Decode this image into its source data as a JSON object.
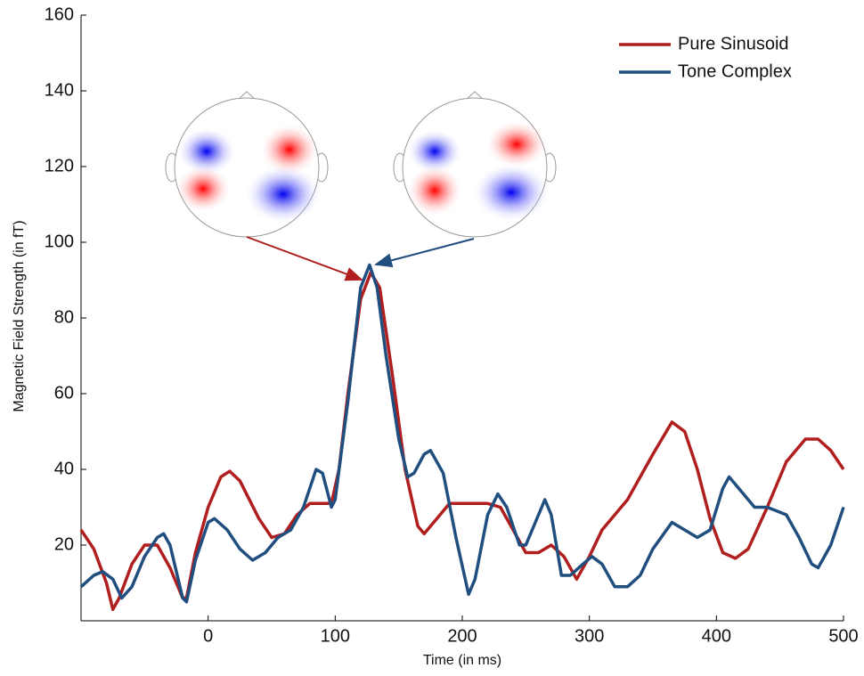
{
  "chart_data": {
    "type": "line",
    "x_label": "Time (in ms)",
    "y_label": "Magnetic Field Strength (in fT)",
    "xlim": [
      -100,
      500
    ],
    "xticks": [
      0,
      100,
      200,
      300,
      400,
      500
    ],
    "ylim": [
      0,
      160
    ],
    "yticks": [
      20,
      40,
      60,
      80,
      100,
      120,
      140,
      160
    ],
    "legend": "upper right",
    "series": [
      {
        "name": "Pure Sinusoid",
        "color": "#b01e1e",
        "x": [
          -100,
          -90,
          -80,
          -75,
          -70,
          -60,
          -50,
          -40,
          -30,
          -20,
          -17,
          -10,
          0,
          10,
          17,
          25,
          40,
          50,
          60,
          70,
          80,
          90,
          97,
          103,
          110,
          120,
          128,
          135,
          145,
          155,
          165,
          170,
          180,
          190,
          200,
          210,
          220,
          230,
          240,
          250,
          260,
          270,
          280,
          290,
          300,
          310,
          330,
          350,
          365,
          375,
          385,
          395,
          405,
          415,
          425,
          440,
          455,
          470,
          480,
          490,
          500
        ],
        "values": [
          24,
          19,
          10,
          3,
          6,
          15,
          20,
          20,
          14,
          6,
          6,
          18,
          30,
          38,
          39.5,
          37,
          27,
          22,
          23,
          28,
          31,
          31,
          31,
          40,
          60,
          85,
          92,
          88,
          65,
          40,
          25,
          23,
          27,
          31,
          31,
          31,
          31,
          30,
          24,
          18,
          18,
          20,
          17,
          11,
          17,
          24,
          32,
          44,
          52.5,
          50,
          40,
          27,
          18,
          16.5,
          19,
          30,
          42,
          48,
          48,
          45,
          40
        ]
      },
      {
        "name": "Tone Complex",
        "color": "#1f4e7f",
        "x": [
          -100,
          -90,
          -83,
          -75,
          -68,
          -60,
          -50,
          -40,
          -35,
          -30,
          -20,
          -17,
          -10,
          0,
          5,
          15,
          25,
          35,
          45,
          55,
          65,
          75,
          85,
          90,
          97,
          100,
          110,
          120,
          127,
          133,
          140,
          150,
          157,
          162,
          170,
          175,
          185,
          195,
          205,
          210,
          220,
          228,
          235,
          245,
          250,
          260,
          265,
          270,
          278,
          285,
          295,
          302,
          310,
          320,
          330,
          340,
          350,
          365,
          375,
          385,
          395,
          405,
          410,
          420,
          430,
          440,
          455,
          465,
          475,
          480,
          490,
          500
        ],
        "values": [
          9,
          12,
          13,
          11,
          6,
          9,
          17,
          22,
          23,
          20,
          6,
          5,
          16,
          26,
          27,
          24,
          19,
          16,
          18,
          22,
          24,
          30,
          40,
          39,
          30,
          32,
          58,
          88,
          94,
          88,
          70,
          48,
          38,
          39,
          44,
          45,
          39,
          22,
          7,
          11,
          28,
          33.5,
          30,
          20,
          20,
          28,
          32,
          28,
          12,
          12,
          15,
          17,
          15,
          9,
          9,
          12,
          19,
          26,
          24,
          22,
          24,
          35,
          38,
          34,
          30,
          30,
          28,
          22,
          15,
          14,
          20,
          30
        ]
      }
    ]
  }
}
